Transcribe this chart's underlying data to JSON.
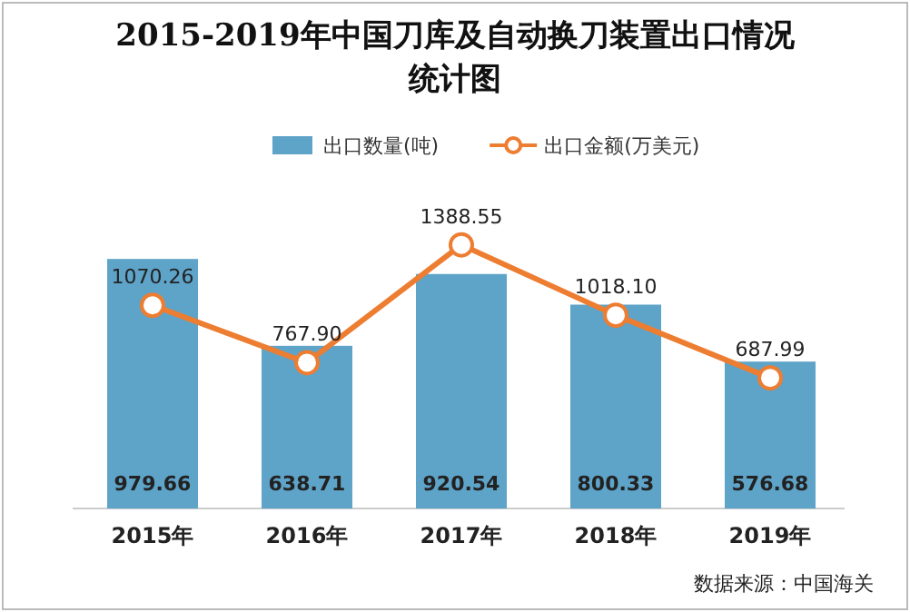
{
  "chart_data": {
    "type": "bar",
    "title": "2015-2019年中国刀库及自动换刀装置出口情况统计图",
    "categories": [
      "2015年",
      "2016年",
      "2017年",
      "2018年",
      "2019年"
    ],
    "series": [
      {
        "name": "出口数量(吨)",
        "color": "#5ea3c8",
        "values": [
          979.66,
          638.71,
          920.54,
          800.33,
          576.68
        ],
        "value_labels": [
          "979.66",
          "638.71",
          "920.54",
          "800.33",
          "576.68"
        ]
      },
      {
        "name": "出口金额(万美元)",
        "type": "line",
        "axis": "y2",
        "color": "#ed7d31",
        "marker": "circle",
        "values": [
          1070.26,
          767.9,
          1388.55,
          1018.1,
          687.99
        ],
        "value_labels": [
          "1070.26",
          "767.90",
          "1388.55",
          "1018.10",
          "687.99"
        ]
      }
    ],
    "tick_labels": "x",
    "legend": "top",
    "annotations": [
      "数据来源：中国海关"
    ]
  }
}
